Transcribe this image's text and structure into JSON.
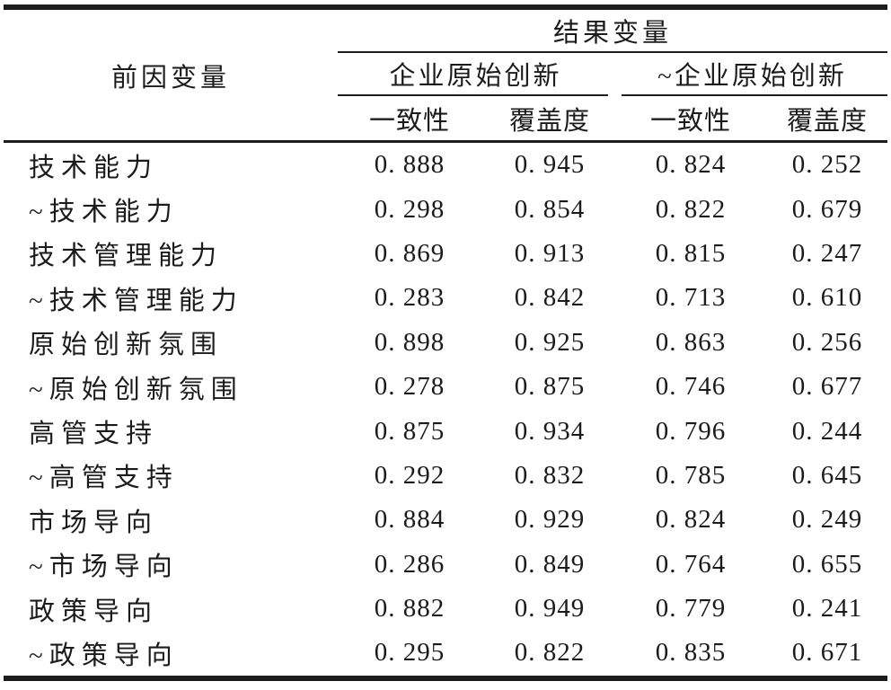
{
  "table": {
    "row_header": "前因变量",
    "outcome_header": "结果变量",
    "groups": [
      {
        "label": "企业原始创新",
        "columns": [
          "一致性",
          "覆盖度"
        ]
      },
      {
        "label": "~企业原始创新",
        "columns": [
          "一致性",
          "覆盖度"
        ]
      }
    ],
    "rows": [
      {
        "label": "技术能力",
        "values": [
          "0. 888",
          "0. 945",
          "0. 824",
          "0. 252"
        ]
      },
      {
        "label": "~技术能力",
        "values": [
          "0. 298",
          "0. 854",
          "0. 822",
          "0. 679"
        ]
      },
      {
        "label": "技术管理能力",
        "values": [
          "0. 869",
          "0. 913",
          "0. 815",
          "0. 247"
        ]
      },
      {
        "label": "~技术管理能力",
        "values": [
          "0. 283",
          "0. 842",
          "0. 713",
          "0. 610"
        ]
      },
      {
        "label": "原始创新氛围",
        "values": [
          "0. 898",
          "0. 925",
          "0. 863",
          "0. 256"
        ]
      },
      {
        "label": "~原始创新氛围",
        "values": [
          "0. 278",
          "0. 875",
          "0. 746",
          "0. 677"
        ]
      },
      {
        "label": "高管支持",
        "values": [
          "0. 875",
          "0. 934",
          "0. 796",
          "0. 244"
        ]
      },
      {
        "label": "~高管支持",
        "values": [
          "0. 292",
          "0. 832",
          "0. 785",
          "0. 645"
        ]
      },
      {
        "label": "市场导向",
        "values": [
          "0. 884",
          "0. 929",
          "0. 824",
          "0. 249"
        ]
      },
      {
        "label": "~市场导向",
        "values": [
          "0. 286",
          "0. 849",
          "0. 764",
          "0. 655"
        ]
      },
      {
        "label": "政策导向",
        "values": [
          "0. 882",
          "0. 949",
          "0. 779",
          "0. 241"
        ]
      },
      {
        "label": "~政策导向",
        "values": [
          "0. 295",
          "0. 822",
          "0. 835",
          "0. 671"
        ]
      }
    ]
  }
}
